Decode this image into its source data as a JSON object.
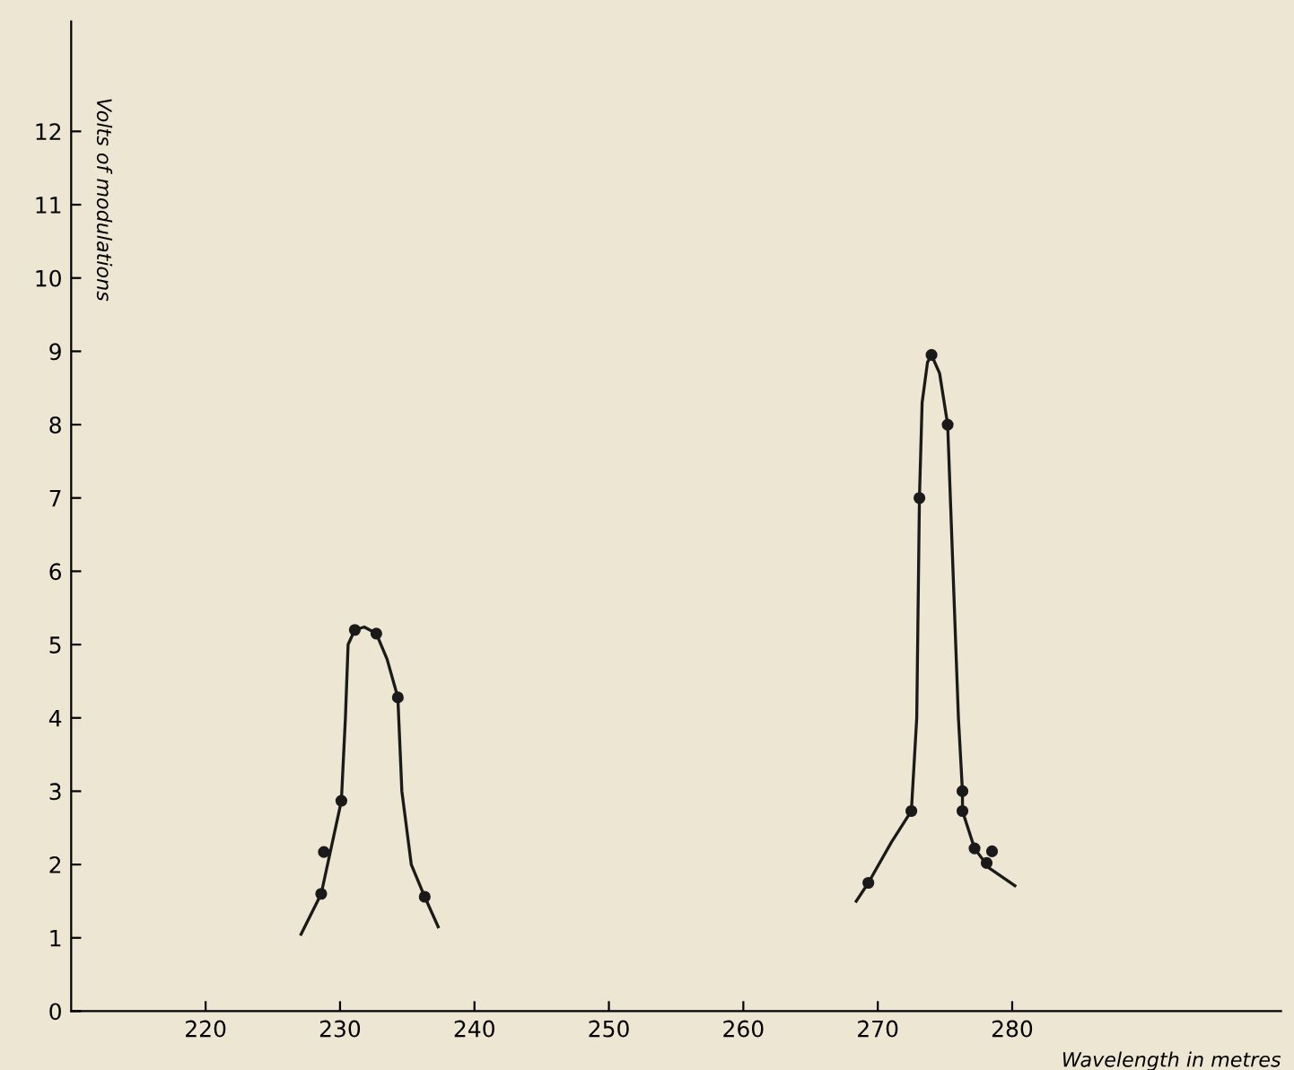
{
  "chart_data": {
    "type": "line",
    "xlabel": "Wavelength in metres",
    "ylabel": "Volts of modulations",
    "xlim": [
      210,
      300
    ],
    "ylim": [
      0,
      13.5
    ],
    "xticks": [
      220,
      230,
      240,
      250,
      260,
      270,
      280
    ],
    "yticks": [
      0,
      1,
      2,
      3,
      4,
      5,
      6,
      7,
      8,
      9,
      10,
      11,
      12
    ],
    "grid": false,
    "legend": false,
    "series": [
      {
        "color": "#1a1a1a",
        "marker": "none",
        "line_style": "solid",
        "x": [
          227.1,
          228.6,
          230.1,
          230.4,
          230.6,
          231.1,
          231.8,
          232.7,
          233.5,
          234.3,
          234.6,
          235.3,
          236.3,
          237.3
        ],
        "values": [
          1.05,
          1.6,
          2.87,
          4.0,
          5.0,
          5.2,
          5.24,
          5.15,
          4.8,
          4.28,
          3.0,
          2.0,
          1.56,
          1.15
        ]
      },
      {
        "color": "#1a1a1a",
        "marker": "none",
        "line_style": "solid",
        "x": [
          268.4,
          269.3,
          271.0,
          272.5,
          272.9,
          273.1,
          273.3,
          273.7,
          274.0,
          274.6,
          275.2,
          275.6,
          276.0,
          276.3,
          276.3,
          277.2,
          278.3,
          280.2
        ],
        "values": [
          1.5,
          1.75,
          2.3,
          2.73,
          4.0,
          7.0,
          8.3,
          8.85,
          8.95,
          8.7,
          8.0,
          6.0,
          4.0,
          3.0,
          2.73,
          2.22,
          1.95,
          1.71
        ]
      },
      {
        "type": "scatter",
        "color": "#1a1a1a",
        "marker": "circle",
        "x": [
          228.6,
          228.8,
          230.1,
          231.1,
          232.7,
          234.3,
          236.3,
          269.3,
          272.5,
          273.1,
          274.0,
          275.2,
          276.3,
          276.3,
          277.2,
          278.5,
          278.1
        ],
        "values": [
          1.6,
          2.17,
          2.87,
          5.2,
          5.15,
          4.28,
          1.56,
          1.75,
          2.73,
          7.0,
          8.95,
          8.0,
          3.0,
          2.73,
          2.22,
          2.18,
          2.02
        ]
      }
    ]
  }
}
